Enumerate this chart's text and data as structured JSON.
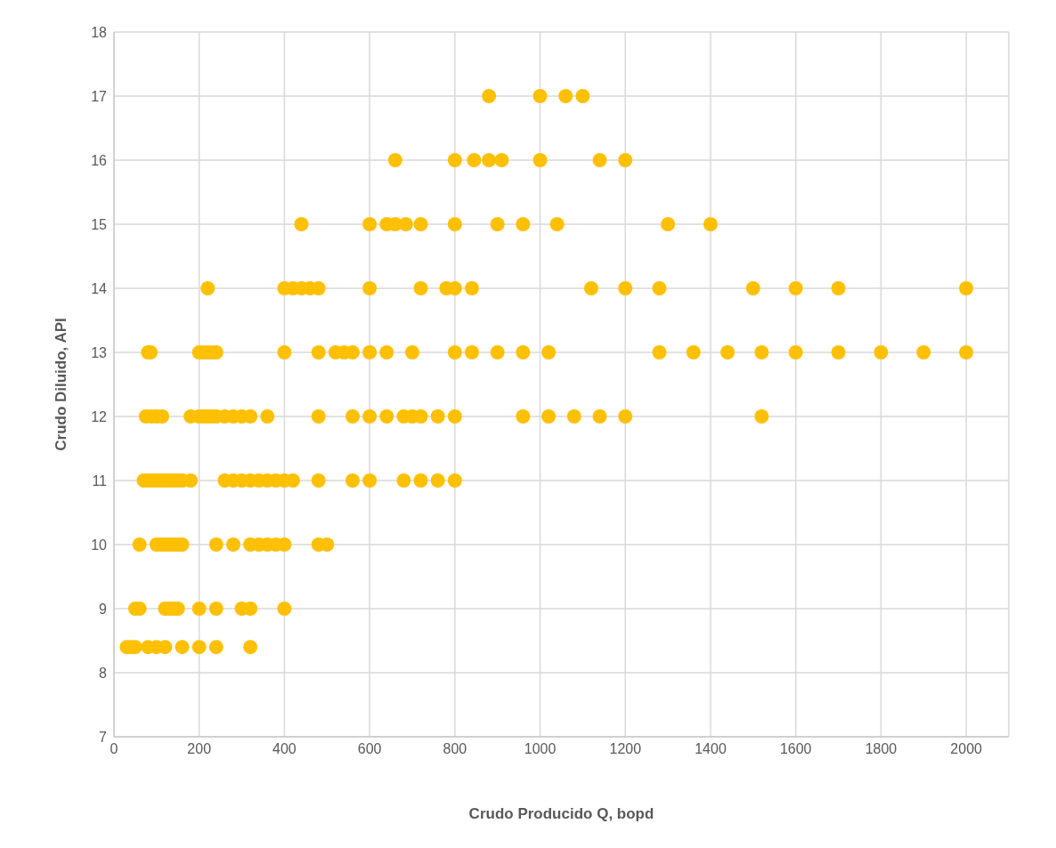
{
  "chart_data": {
    "type": "scatter",
    "xlabel": "Crudo Producido Q, bopd",
    "ylabel": "Crudo Diluido, API",
    "xlim": [
      0,
      2100
    ],
    "xticks": [
      0,
      200,
      400,
      600,
      800,
      1000,
      1200,
      1400,
      1600,
      1800,
      2000
    ],
    "ylim": [
      7,
      18
    ],
    "yticks": [
      7,
      8,
      9,
      10,
      11,
      12,
      13,
      14,
      15,
      16,
      17,
      18
    ],
    "grid": true,
    "legend": false,
    "marker": "circle",
    "series": [
      {
        "color": "#ffc000",
        "x": [
          880,
          1000,
          1060,
          1100,
          660,
          800,
          845,
          880,
          910,
          1000,
          1140,
          1200,
          440,
          600,
          640,
          660,
          685,
          720,
          800,
          900,
          960,
          1040,
          1300,
          1400,
          220,
          400,
          420,
          440,
          460,
          480,
          600,
          720,
          780,
          800,
          840,
          1120,
          1200,
          1280,
          1500,
          1600,
          1700,
          2000,
          80,
          86,
          200,
          210,
          220,
          230,
          240,
          400,
          480,
          520,
          540,
          560,
          600,
          640,
          700,
          800,
          840,
          900,
          960,
          1020,
          1280,
          1360,
          1440,
          1520,
          1600,
          1700,
          1800,
          1900,
          2000,
          75,
          88,
          100,
          113,
          180,
          200,
          210,
          220,
          230,
          240,
          260,
          280,
          300,
          320,
          360,
          480,
          560,
          600,
          640,
          680,
          700,
          720,
          760,
          800,
          960,
          1020,
          1080,
          1140,
          1200,
          1520,
          70,
          80,
          90,
          100,
          110,
          120,
          130,
          140,
          150,
          160,
          180,
          260,
          280,
          300,
          320,
          340,
          360,
          380,
          400,
          420,
          480,
          560,
          600,
          680,
          720,
          760,
          800,
          60,
          100,
          110,
          120,
          130,
          140,
          150,
          160,
          240,
          280,
          320,
          340,
          360,
          380,
          400,
          480,
          500,
          50,
          60,
          120,
          130,
          140,
          150,
          200,
          240,
          300,
          320,
          400,
          30,
          40,
          50,
          80,
          100,
          120,
          160,
          200,
          240,
          320
        ],
        "values": [
          17,
          17,
          17,
          17,
          16,
          16,
          16,
          16,
          16,
          16,
          16,
          16,
          15,
          15,
          15,
          15,
          15,
          15,
          15,
          15,
          15,
          15,
          15,
          15,
          14,
          14,
          14,
          14,
          14,
          14,
          14,
          14,
          14,
          14,
          14,
          14,
          14,
          14,
          14,
          14,
          14,
          14,
          13,
          13,
          13,
          13,
          13,
          13,
          13,
          13,
          13,
          13,
          13,
          13,
          13,
          13,
          13,
          13,
          13,
          13,
          13,
          13,
          13,
          13,
          13,
          13,
          13,
          13,
          13,
          13,
          13,
          12,
          12,
          12,
          12,
          12,
          12,
          12,
          12,
          12,
          12,
          12,
          12,
          12,
          12,
          12,
          12,
          12,
          12,
          12,
          12,
          12,
          12,
          12,
          12,
          12,
          12,
          12,
          12,
          12,
          12,
          11,
          11,
          11,
          11,
          11,
          11,
          11,
          11,
          11,
          11,
          11,
          11,
          11,
          11,
          11,
          11,
          11,
          11,
          11,
          11,
          11,
          11,
          11,
          11,
          11,
          11,
          11,
          10,
          10,
          10,
          10,
          10,
          10,
          10,
          10,
          10,
          10,
          10,
          10,
          10,
          10,
          10,
          10,
          10,
          9,
          9,
          9,
          9,
          9,
          9,
          9,
          9,
          9,
          9,
          9,
          8.4,
          8.4,
          8.4,
          8.4,
          8.4,
          8.4,
          8.4,
          8.4,
          8.4,
          8.4
        ]
      }
    ]
  }
}
